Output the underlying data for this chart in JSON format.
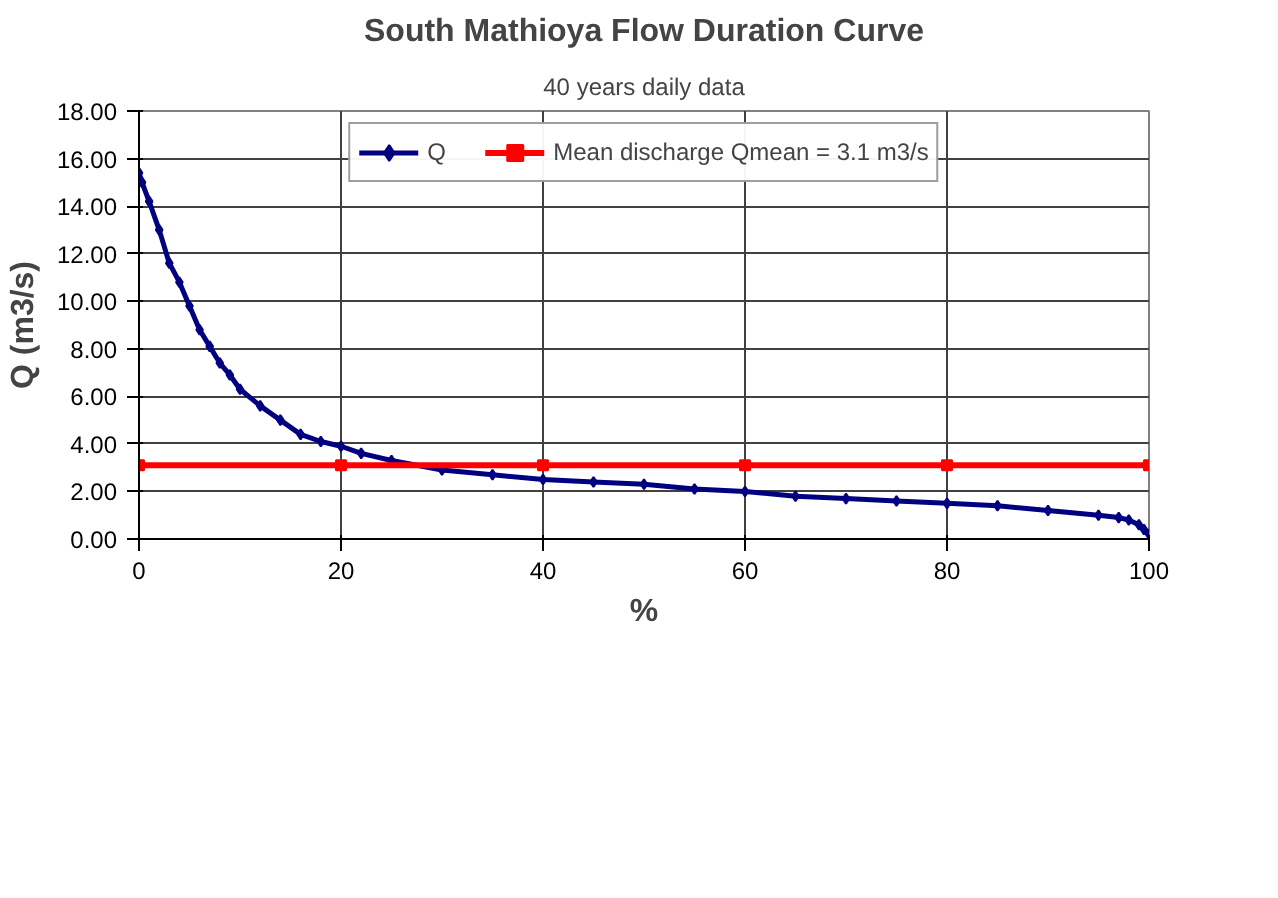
{
  "chart_data": {
    "type": "line",
    "title": "South Mathioya Flow Duration Curve",
    "subtitle": "40 years daily data",
    "xlabel": "%",
    "ylabel": "Q (m3/s)",
    "xlim": [
      0,
      100
    ],
    "xticks": [
      0,
      20,
      40,
      60,
      80,
      100
    ],
    "ylim": [
      0,
      18
    ],
    "yticks": [
      {
        "value": 0,
        "label": "0.00"
      },
      {
        "value": 2,
        "label": "2.00"
      },
      {
        "value": 4,
        "label": "4.00"
      },
      {
        "value": 6,
        "label": "6.00"
      },
      {
        "value": 8,
        "label": "8.00"
      },
      {
        "value": 10,
        "label": "10.00"
      },
      {
        "value": 12,
        "label": "12.00"
      },
      {
        "value": 14,
        "label": "14.00"
      },
      {
        "value": 16,
        "label": "16.00"
      },
      {
        "value": 18,
        "label": "18.00"
      }
    ],
    "grid": true,
    "legend": "top",
    "series": [
      {
        "name": "Q",
        "color": "#000080",
        "marker": "diamond",
        "x": [
          0,
          0.3,
          1,
          2,
          3,
          4,
          5,
          6,
          7,
          8,
          9,
          10,
          12,
          14,
          16,
          18,
          20,
          22,
          25,
          30,
          35,
          40,
          45,
          50,
          55,
          60,
          65,
          70,
          75,
          80,
          85,
          90,
          95,
          97,
          98,
          99,
          99.5,
          100
        ],
        "values": [
          15.4,
          15.0,
          14.2,
          13.0,
          11.6,
          10.8,
          9.8,
          8.8,
          8.1,
          7.4,
          6.9,
          6.3,
          5.6,
          5.0,
          4.4,
          4.1,
          3.9,
          3.6,
          3.3,
          2.9,
          2.7,
          2.5,
          2.4,
          2.3,
          2.1,
          2.0,
          1.8,
          1.7,
          1.6,
          1.5,
          1.4,
          1.2,
          1.0,
          0.9,
          0.8,
          0.6,
          0.4,
          0.2
        ]
      },
      {
        "name": "Mean discharge Qmean = 3.1 m3/s",
        "color": "#ff0000",
        "marker": "square",
        "x": [
          0,
          20,
          40,
          60,
          80,
          100
        ],
        "values": [
          3.1,
          3.1,
          3.1,
          3.1,
          3.1,
          3.1
        ]
      }
    ]
  }
}
